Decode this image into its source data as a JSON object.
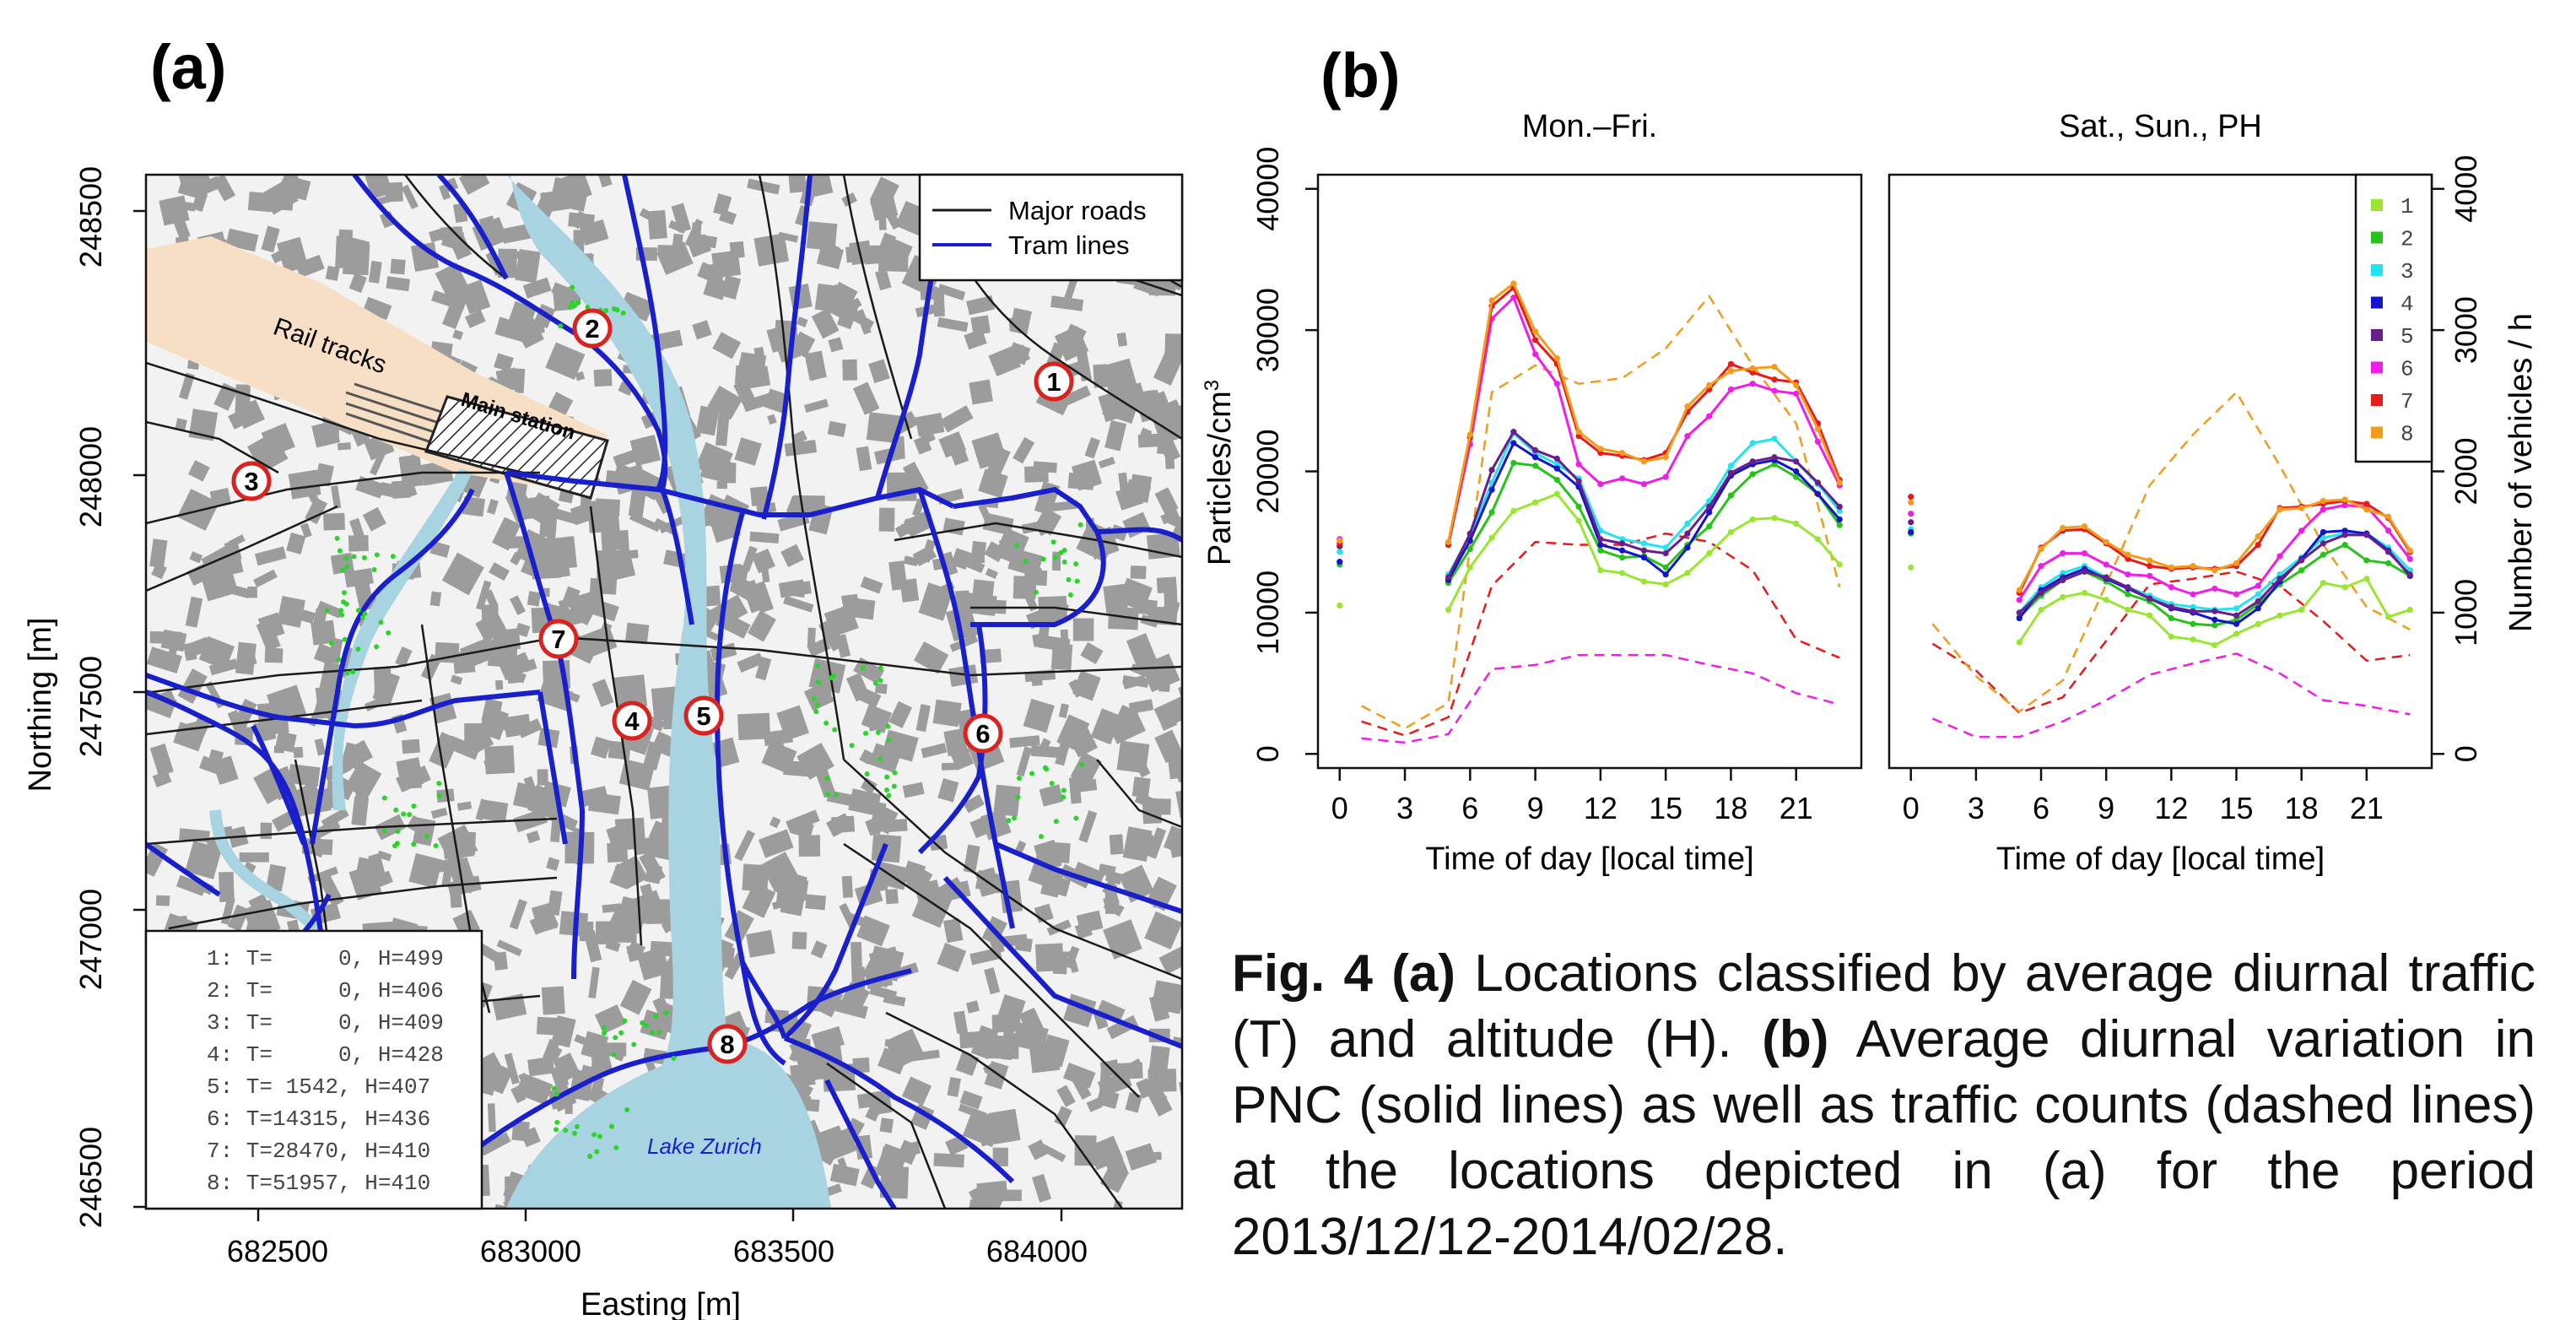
{
  "panel_a": {
    "label": "(a)",
    "legend": [
      {
        "label": "Major roads",
        "color": "#1a1a1a"
      },
      {
        "label": "Tram lines",
        "color": "#1a1fcc"
      }
    ],
    "x_axis_title": "Easting [m]",
    "y_axis_title": "Northing [m]",
    "x_ticks": [
      "682500",
      "683000",
      "683500",
      "684000"
    ],
    "y_ticks": [
      "246500",
      "247000",
      "247500",
      "248000",
      "248500"
    ],
    "map_text": {
      "rail": "Rail tracks",
      "station": "Main station",
      "lake": "Lake Zurich"
    },
    "sites": [
      {
        "num": "1",
        "line": "1: T=     0, H=499"
      },
      {
        "num": "2",
        "line": "2: T=     0, H=406"
      },
      {
        "num": "3",
        "line": "3: T=     0, H=409"
      },
      {
        "num": "4",
        "line": "4: T=     0, H=428"
      },
      {
        "num": "5",
        "line": "5: T= 1542, H=407"
      },
      {
        "num": "6",
        "line": "6: T=14315, H=436"
      },
      {
        "num": "7",
        "line": "7: T=28470, H=410"
      },
      {
        "num": "8",
        "line": "8: T=51957, H=410"
      }
    ],
    "colors": {
      "water": "#a8d4e2",
      "rail": "#f7dfc6",
      "building": "#9c9c9c",
      "tram": "#1a1fcc",
      "marker": "#d9231f",
      "trees": "#2ad42a"
    }
  },
  "panel_b": {
    "label": "(b)"
  },
  "chart_data": [
    {
      "type": "line",
      "title": "Mon.–Fri.",
      "xlabel": "Time of day [local time]",
      "ylabel": "Particles/cm3",
      "xlim": [
        -1,
        24
      ],
      "ylim": [
        -1000,
        41000
      ],
      "xticks": [
        "0",
        "3",
        "6",
        "9",
        "12",
        "15",
        "18",
        "21"
      ],
      "yticks": [
        "0",
        "10000",
        "20000",
        "30000",
        "40000"
      ],
      "x": [
        0,
        5,
        6,
        7,
        8,
        9,
        10,
        11,
        12,
        13,
        14,
        15,
        16,
        17,
        18,
        19,
        20,
        21,
        22,
        23
      ],
      "series": [
        {
          "name": "1",
          "color": "#99e632",
          "values": [
            10500,
            10200,
            13200,
            15300,
            17200,
            17800,
            18400,
            16500,
            13000,
            12800,
            12200,
            12000,
            12800,
            14200,
            15700,
            16600,
            16700,
            16300,
            15200,
            13400
          ]
        },
        {
          "name": "2",
          "color": "#27c21a",
          "values": [
            13400,
            12100,
            14500,
            17100,
            20600,
            20400,
            19400,
            17500,
            14400,
            13900,
            14000,
            13200,
            14800,
            16100,
            18300,
            19800,
            20500,
            19600,
            18400,
            16200
          ]
        },
        {
          "name": "3",
          "color": "#22e3ee",
          "values": [
            14300,
            12700,
            15500,
            19200,
            22700,
            21300,
            20500,
            19500,
            15800,
            15200,
            14900,
            14600,
            16300,
            17900,
            20400,
            22000,
            22300,
            20700,
            19100,
            17200
          ]
        },
        {
          "name": "4",
          "color": "#1414cc",
          "values": [
            13600,
            12300,
            15100,
            18700,
            22000,
            21000,
            20200,
            18900,
            14800,
            14400,
            13900,
            12700,
            14600,
            17100,
            19700,
            20500,
            20800,
            20000,
            18400,
            16600
          ]
        },
        {
          "name": "5",
          "color": "#6a1e8c",
          "values": [
            14700,
            12500,
            15600,
            20100,
            22800,
            21500,
            20900,
            19300,
            15200,
            14900,
            14400,
            14200,
            15600,
            17500,
            19900,
            20700,
            21000,
            20700,
            19200,
            17500
          ]
        },
        {
          "name": "6",
          "color": "#f01de6",
          "values": [
            15200,
            14800,
            21900,
            30800,
            32300,
            28300,
            26200,
            20500,
            19100,
            19500,
            19100,
            19600,
            22500,
            23900,
            25800,
            26200,
            25700,
            25500,
            22100,
            19000
          ]
        },
        {
          "name": "7",
          "color": "#e81a1a",
          "values": [
            14900,
            14800,
            22400,
            31700,
            33000,
            29300,
            27600,
            22500,
            21300,
            21100,
            20800,
            21300,
            24200,
            25800,
            27600,
            27000,
            26500,
            26300,
            23400,
            19400
          ]
        },
        {
          "name": "8",
          "color": "#f59b1c",
          "values": [
            15100,
            15000,
            22600,
            32100,
            33300,
            29900,
            28000,
            22800,
            21600,
            21300,
            20700,
            21000,
            24600,
            26100,
            27100,
            27300,
            27400,
            26100,
            23000,
            19200
          ]
        }
      ],
      "traffic_axis": {
        "label": "Number of vehicles / h",
        "ticks": [
          "0",
          "1000",
          "2000",
          "3000",
          "4000"
        ],
        "max": 4000
      },
      "traffic_x": [
        1,
        3,
        5,
        7,
        9,
        11,
        13,
        15,
        17,
        19,
        21,
        23
      ],
      "traffic": [
        {
          "site": "6",
          "color": "#f01de6",
          "values": [
            110,
            80,
            140,
            600,
            630,
            700,
            700,
            700,
            630,
            570,
            430,
            350
          ]
        },
        {
          "site": "7",
          "color": "#e81a1a",
          "values": [
            230,
            130,
            260,
            1190,
            1500,
            1480,
            1480,
            1560,
            1500,
            1300,
            810,
            680
          ]
        },
        {
          "site": "8",
          "color": "#f59b1c",
          "values": [
            340,
            180,
            360,
            2560,
            2750,
            2620,
            2660,
            2870,
            3240,
            2750,
            2340,
            1180
          ]
        }
      ]
    },
    {
      "type": "line",
      "title": "Sat., Sun., PH",
      "xlabel": "Time of day [local time]",
      "xlim": [
        -1,
        24
      ],
      "ylim": [
        -1000,
        41000
      ],
      "xticks": [
        "0",
        "3",
        "6",
        "9",
        "12",
        "15",
        "18",
        "21"
      ],
      "x": [
        0,
        5,
        6,
        7,
        8,
        9,
        10,
        11,
        12,
        13,
        14,
        15,
        16,
        17,
        18,
        19,
        20,
        21,
        22,
        23
      ],
      "series": [
        {
          "name": "1",
          "color": "#99e632",
          "values": [
            13200,
            7900,
            10200,
            11100,
            11400,
            10900,
            10200,
            9800,
            8300,
            8100,
            7700,
            8500,
            9200,
            9800,
            10200,
            12100,
            11800,
            12400,
            9700,
            10200
          ]
        },
        {
          "name": "2",
          "color": "#27c21a",
          "values": [
            15600,
            9700,
            11200,
            12300,
            12900,
            12200,
            11300,
            10800,
            9600,
            9200,
            9100,
            9500,
            10600,
            12000,
            13000,
            14100,
            14800,
            13700,
            13500,
            12600
          ]
        },
        {
          "name": "3",
          "color": "#22e3ee",
          "values": [
            15900,
            10000,
            11800,
            12800,
            13300,
            12500,
            11800,
            11200,
            10600,
            10400,
            10200,
            10300,
            11300,
            12700,
            13900,
            15300,
            15600,
            15600,
            14600,
            13000
          ]
        },
        {
          "name": "4",
          "color": "#1414cc",
          "values": [
            15700,
            9600,
            11600,
            12500,
            13100,
            12400,
            11700,
            11000,
            10300,
            10000,
            9500,
            9200,
            10300,
            12200,
            13800,
            15700,
            15800,
            15600,
            14400,
            12600
          ]
        },
        {
          "name": "5",
          "color": "#6a1e8c",
          "values": [
            16400,
            10000,
            11400,
            12300,
            12900,
            12500,
            11800,
            11000,
            10400,
            10100,
            10100,
            9800,
            10800,
            12400,
            13700,
            14900,
            15500,
            15500,
            14300,
            12700
          ]
        },
        {
          "name": "6",
          "color": "#f01de6",
          "values": [
            17000,
            10900,
            13300,
            14200,
            14200,
            13400,
            12700,
            12600,
            11800,
            11300,
            11700,
            11300,
            11900,
            14000,
            15800,
            17300,
            17600,
            17500,
            15800,
            13800
          ]
        },
        {
          "name": "7",
          "color": "#e81a1a",
          "values": [
            18200,
            11400,
            14600,
            15800,
            15900,
            14900,
            13800,
            13300,
            13100,
            13200,
            13100,
            13300,
            14800,
            17400,
            17500,
            17700,
            17900,
            17700,
            16700,
            14300
          ]
        },
        {
          "name": "8",
          "color": "#f59b1c",
          "values": [
            17800,
            11600,
            14500,
            16000,
            16100,
            15000,
            14100,
            13700,
            13200,
            13300,
            13000,
            13500,
            15400,
            17300,
            17400,
            17900,
            18000,
            17300,
            16800,
            14400
          ]
        }
      ],
      "traffic_axis": {
        "label": "Number of vehicles / h",
        "ticks": [
          "0",
          "1000",
          "2000",
          "3000",
          "4000"
        ],
        "max": 4000
      },
      "traffic_x": [
        1,
        3,
        5,
        7,
        9,
        11,
        13,
        15,
        17,
        19,
        21,
        23
      ],
      "traffic": [
        {
          "site": "6",
          "color": "#f01de6",
          "values": [
            250,
            120,
            120,
            230,
            380,
            560,
            640,
            710,
            570,
            380,
            340,
            280
          ]
        },
        {
          "site": "7",
          "color": "#e81a1a",
          "values": [
            780,
            590,
            290,
            400,
            800,
            1200,
            1240,
            1290,
            1190,
            940,
            660,
            700
          ]
        },
        {
          "site": "8",
          "color": "#f59b1c",
          "values": [
            920,
            550,
            300,
            520,
            1200,
            1900,
            2260,
            2560,
            2040,
            1480,
            1040,
            880
          ]
        }
      ]
    }
  ],
  "caption": {
    "fig": "Fig. 4",
    "a_label": "(a)",
    "a_text": " Locations classified by average diurnal traffic (T) and altitude (H). ",
    "b_label": "(b)",
    "b_text": " Average diurnal variation in PNC (solid lines) as well as traffic counts (dashed lines) at the locations depicted in (a) for the period 2013/12/12-2014/02/28."
  }
}
